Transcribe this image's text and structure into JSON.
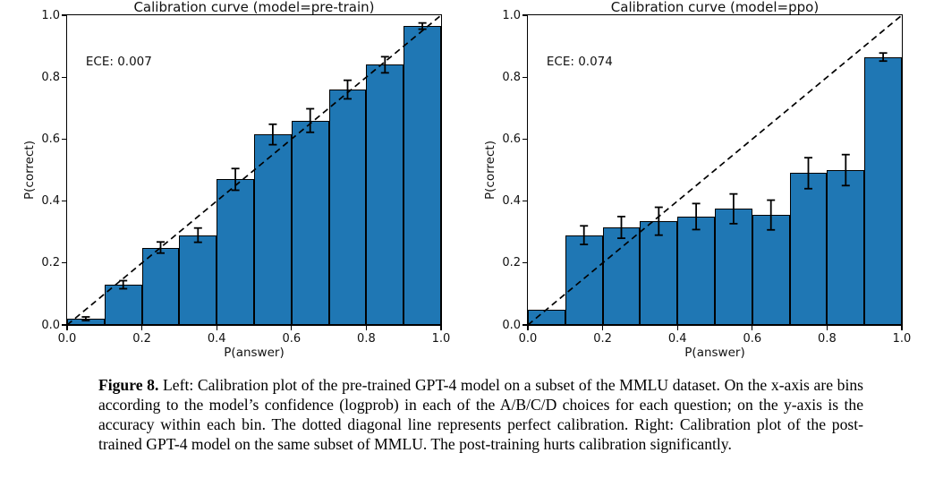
{
  "page": {
    "background": "#ffffff"
  },
  "colors": {
    "bar_fill": "#1f77b4",
    "bar_edge": "#000000",
    "diagonal_line": "#000000",
    "error_bar": "#000000",
    "text": "#111111"
  },
  "figure": {
    "caption_label": "Figure 8.",
    "caption_text": " Left: Calibration plot of the pre-trained GPT-4 model on a subset of the MMLU dataset. On the x-axis are bins according to the model’s confidence (logprob) in each of the A/B/C/D choices for each question; on the y-axis is the accuracy within each bin. The dotted diagonal line represents perfect calibration. Right: Calibration plot of the post-trained GPT-4 model on the same subset of MMLU. The post-training hurts calibration significantly."
  },
  "chart_data": [
    {
      "type": "bar",
      "title": "Calibration curve (model=pre-train)",
      "annotation": "ECE: 0.007",
      "xlabel": "P(answer)",
      "ylabel": "P(correct)",
      "xlim": [
        0.0,
        1.0
      ],
      "ylim": [
        0.0,
        1.0
      ],
      "grid": false,
      "legend": null,
      "diagonal_reference_line": true,
      "xticks": [
        "0.0",
        "0.2",
        "0.4",
        "0.6",
        "0.8",
        "1.0"
      ],
      "yticks": [
        "0.0",
        "0.2",
        "0.4",
        "0.6",
        "0.8",
        "1.0"
      ],
      "bin_edges": [
        0.0,
        0.1,
        0.2,
        0.3,
        0.4,
        0.5,
        0.6,
        0.7,
        0.8,
        0.9,
        1.0
      ],
      "values": [
        0.02,
        0.13,
        0.25,
        0.29,
        0.47,
        0.615,
        0.66,
        0.76,
        0.84,
        0.965
      ],
      "errors": [
        0.006,
        0.013,
        0.018,
        0.023,
        0.035,
        0.033,
        0.038,
        0.03,
        0.026,
        0.01
      ]
    },
    {
      "type": "bar",
      "title": "Calibration curve (model=ppo)",
      "annotation": "ECE: 0.074",
      "xlabel": "P(answer)",
      "ylabel": "P(correct)",
      "xlim": [
        0.0,
        1.0
      ],
      "ylim": [
        0.0,
        1.0
      ],
      "grid": false,
      "legend": null,
      "diagonal_reference_line": true,
      "xticks": [
        "0.0",
        "0.2",
        "0.4",
        "0.6",
        "0.8",
        "1.0"
      ],
      "yticks": [
        "0.0",
        "0.2",
        "0.4",
        "0.6",
        "0.8",
        "1.0"
      ],
      "bin_edges": [
        0.0,
        0.1,
        0.2,
        0.3,
        0.4,
        0.5,
        0.6,
        0.7,
        0.8,
        0.9,
        1.0
      ],
      "values": [
        0.05,
        0.29,
        0.315,
        0.335,
        0.35,
        0.375,
        0.355,
        0.49,
        0.5,
        0.865
      ],
      "errors": [
        null,
        0.03,
        0.035,
        0.045,
        0.042,
        0.048,
        0.048,
        0.05,
        0.05,
        0.013
      ]
    }
  ]
}
